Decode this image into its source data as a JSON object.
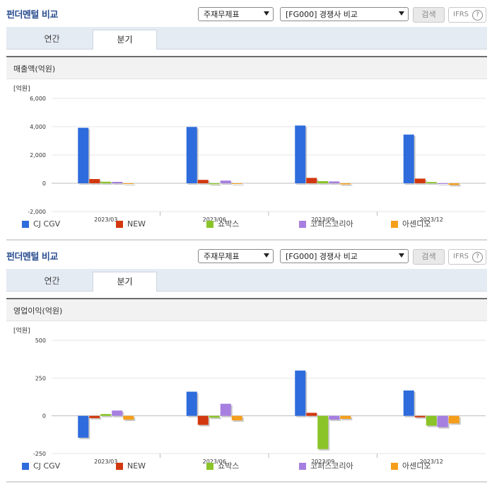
{
  "panels": [
    {
      "title": "펀더멘털 비교",
      "select1": "주재무제표",
      "select2": "[FG000] 경쟁사 비교",
      "search_label": "검색",
      "ifrs_label": "IFRS",
      "help_label": "?",
      "tabs": [
        "연간",
        "분기"
      ],
      "active_tab": 1
    },
    {
      "title": "펀더멘털 비교",
      "select1": "주재무제표",
      "select2": "[FG000] 경쟁사 비교",
      "search_label": "검색",
      "ifrs_label": "IFRS",
      "help_label": "?",
      "tabs": [
        "연간",
        "분기"
      ],
      "active_tab": 1
    }
  ],
  "chart_data": [
    {
      "type": "bar",
      "title": "매출액(억원)",
      "unit_label": "[억원]",
      "categories": [
        "2023/03",
        "2023/06",
        "2023/09",
        "2023/12"
      ],
      "ylim": [
        -2000,
        6000
      ],
      "yticks": [
        6000,
        4000,
        2000,
        0,
        -2000
      ],
      "ytick_labels": [
        "6,000",
        "4,000",
        "2,000",
        "0",
        "-2,000"
      ],
      "grid": true,
      "legend_position": "bottom",
      "series": [
        {
          "name": "CJ CGV",
          "color": "#2e6bdc",
          "values": [
            3920,
            3980,
            4080,
            3440
          ]
        },
        {
          "name": "NEW",
          "color": "#d2380f",
          "values": [
            300,
            240,
            380,
            330
          ]
        },
        {
          "name": "쇼박스",
          "color": "#8ac428",
          "values": [
            110,
            -70,
            150,
            90
          ]
        },
        {
          "name": "코퍼스코리아",
          "color": "#a67fe0",
          "values": [
            100,
            190,
            130,
            -20
          ]
        },
        {
          "name": "아센디오",
          "color": "#f59e1b",
          "values": [
            -40,
            -50,
            -80,
            -120
          ]
        }
      ]
    },
    {
      "type": "bar",
      "title": "영업이익(억원)",
      "unit_label": "[억원]",
      "categories": [
        "2023/03",
        "2023/06",
        "2023/09",
        "2023/12"
      ],
      "ylim": [
        -250,
        500
      ],
      "yticks": [
        500,
        250,
        0,
        -250
      ],
      "ytick_labels": [
        "500",
        "250",
        "0",
        "-250"
      ],
      "grid": true,
      "legend_position": "bottom",
      "series": [
        {
          "name": "CJ CGV",
          "color": "#2e6bdc",
          "values": [
            -145,
            160,
            300,
            168
          ]
        },
        {
          "name": "NEW",
          "color": "#d2380f",
          "values": [
            -15,
            -60,
            20,
            -10
          ]
        },
        {
          "name": "쇼박스",
          "color": "#8ac428",
          "values": [
            12,
            -12,
            -220,
            -65
          ]
        },
        {
          "name": "코퍼스코리아",
          "color": "#a67fe0",
          "values": [
            35,
            80,
            -25,
            -75
          ]
        },
        {
          "name": "아센디오",
          "color": "#f59e1b",
          "values": [
            -25,
            -30,
            -20,
            -50
          ]
        }
      ]
    }
  ]
}
